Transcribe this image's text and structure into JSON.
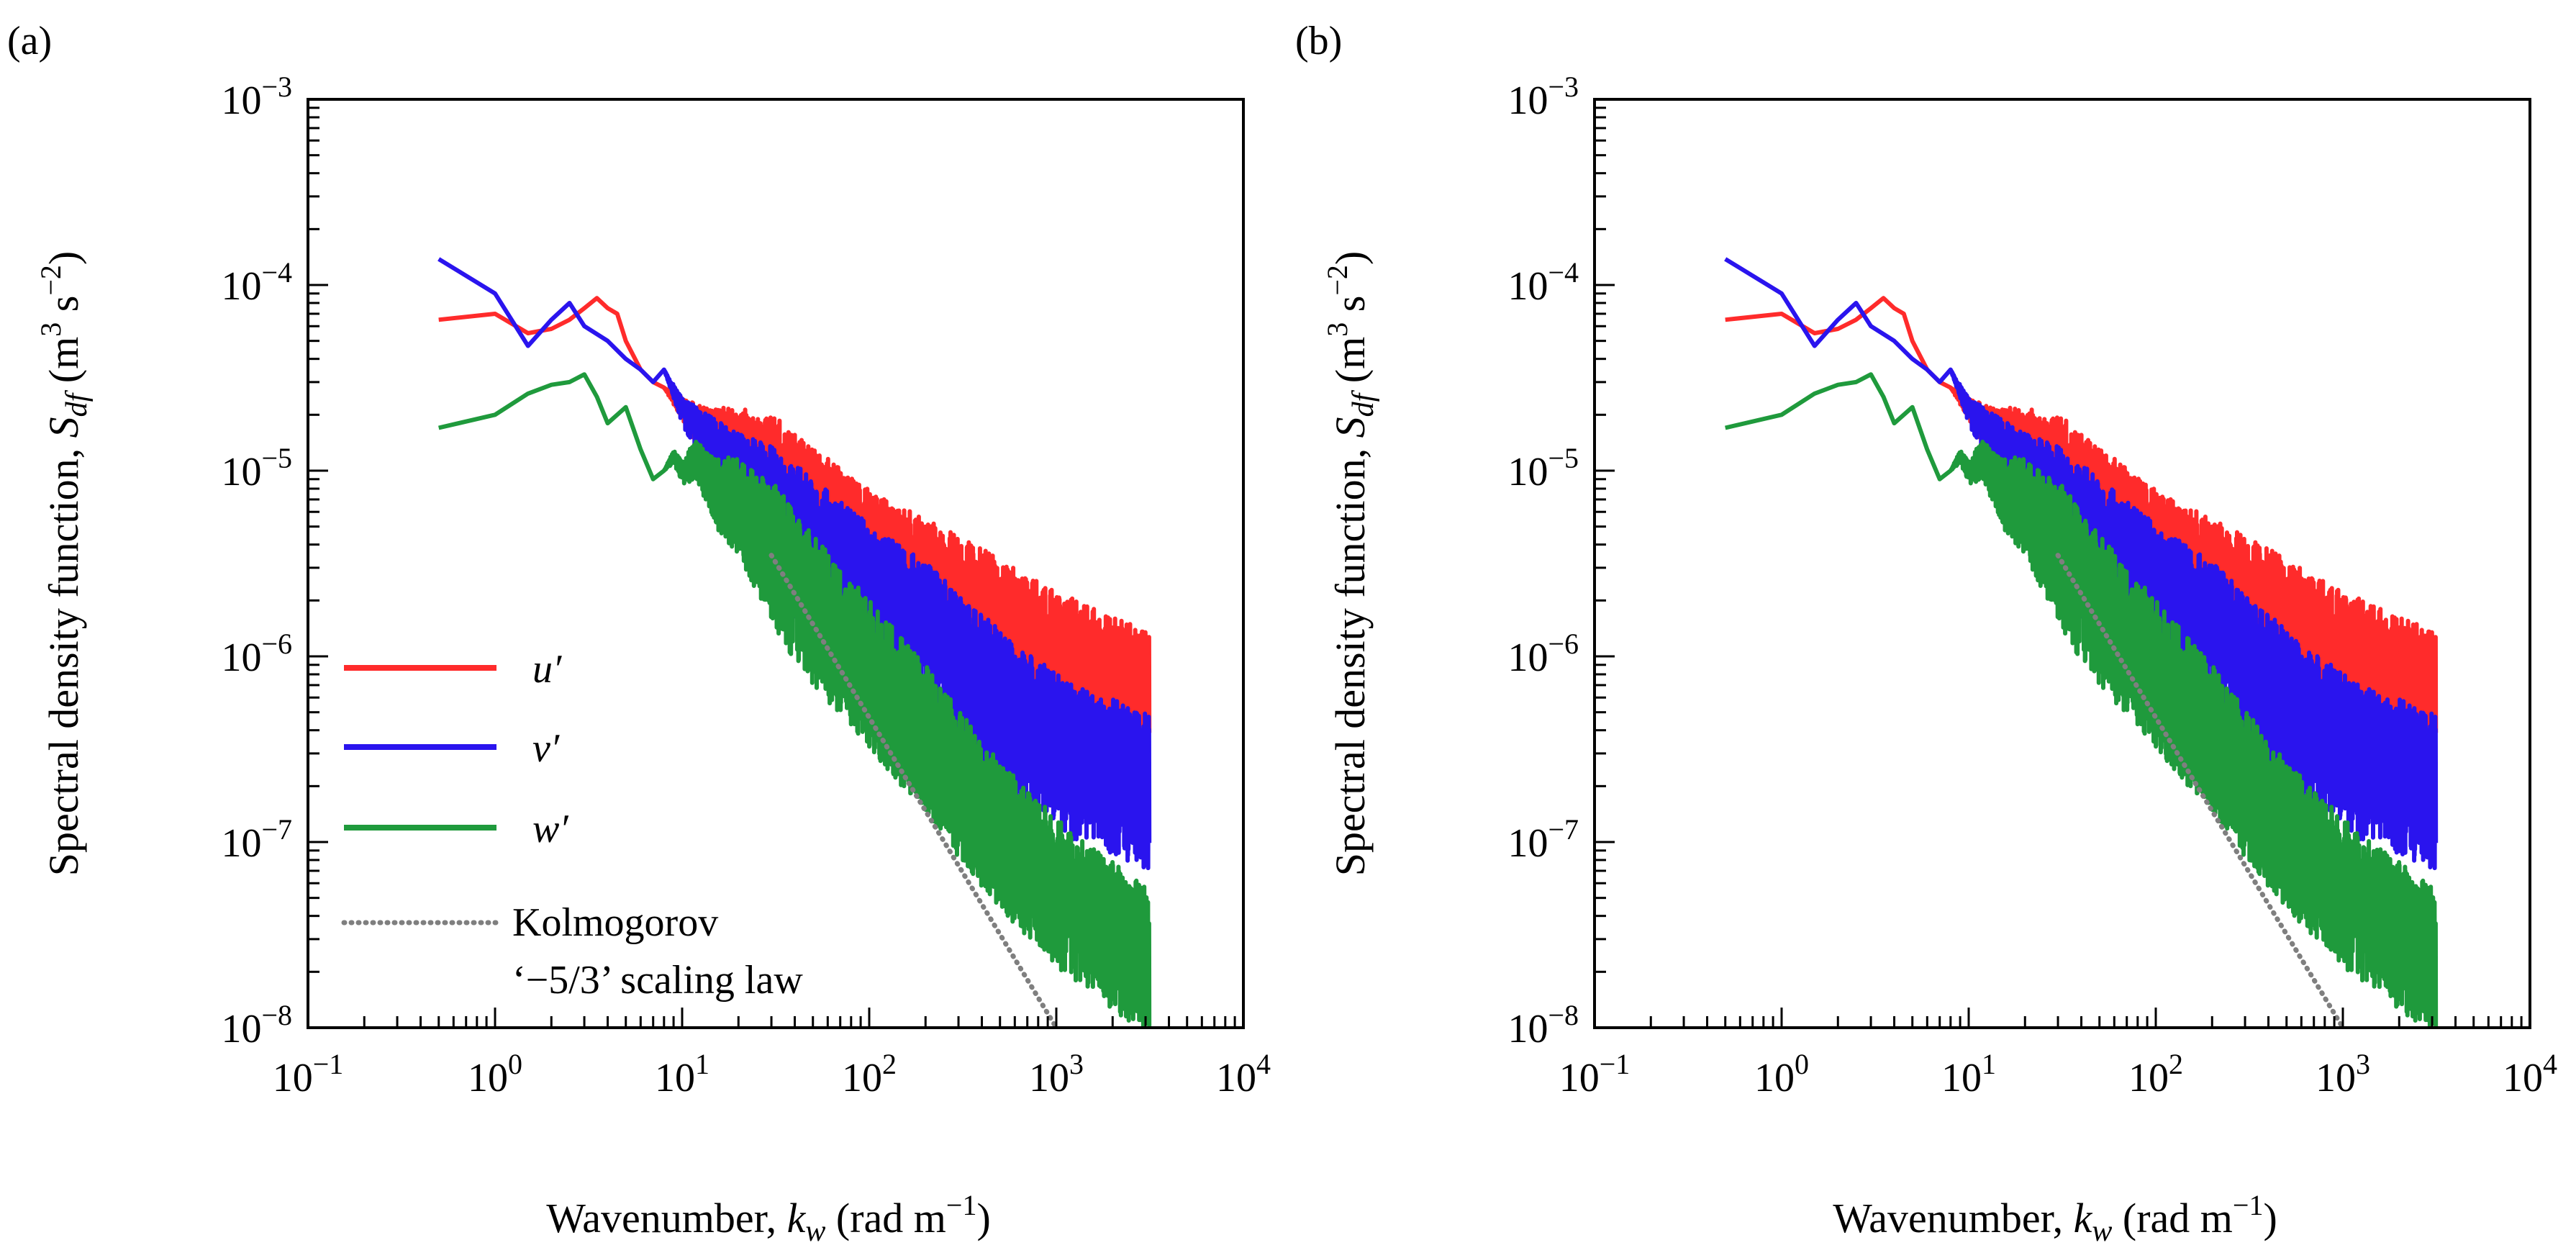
{
  "panels": [
    {
      "label": "(a)",
      "show_legend": true
    },
    {
      "label": "(b)",
      "show_legend": false
    }
  ],
  "axes": {
    "xlabel_prefix": "Wavenumber, ",
    "xlabel_var": "k",
    "xlabel_sub": "w",
    "xlabel_units_pre": " (rad m",
    "xlabel_units_sup": "−1",
    "xlabel_units_post": ")",
    "ylabel_prefix": "Spectral density function, ",
    "ylabel_var": "S",
    "ylabel_sub": "df",
    "ylabel_units_a": " (m",
    "ylabel_units_sup1": "3",
    "ylabel_units_b": " s",
    "ylabel_units_sup2": "−2",
    "ylabel_units_c": ")",
    "x_ticks": [
      {
        "base": "10",
        "exp": "−1"
      },
      {
        "base": "10",
        "exp": "0"
      },
      {
        "base": "10",
        "exp": "1"
      },
      {
        "base": "10",
        "exp": "2"
      },
      {
        "base": "10",
        "exp": "3"
      },
      {
        "base": "10",
        "exp": "4"
      }
    ],
    "y_ticks": [
      {
        "base": "10",
        "exp": "−8"
      },
      {
        "base": "10",
        "exp": "−7"
      },
      {
        "base": "10",
        "exp": "−6"
      },
      {
        "base": "10",
        "exp": "−5"
      },
      {
        "base": "10",
        "exp": "−4"
      },
      {
        "base": "10",
        "exp": "−3"
      }
    ]
  },
  "legend": {
    "u_label": "u′",
    "v_label": "v′",
    "w_label": "w′",
    "k_label_line1": "Kolmogorov",
    "k_label_line2": "‘−5/3’ scaling law"
  },
  "colors": {
    "u": "#ff2b2b",
    "v": "#2a14ee",
    "w": "#1f9a3c",
    "kolmogorov": "#7f7f7f"
  },
  "chart_data": {
    "type": "line",
    "xscale": "log",
    "yscale": "log",
    "xlim": [
      0.1,
      10000
    ],
    "ylim": [
      1e-08,
      0.001
    ],
    "title": "",
    "xlabel": "Wavenumber, k_w (rad m−1)",
    "ylabel": "Spectral density function, S_df (m3 s−2)",
    "legend_position": "lower-left",
    "kolmogorov_line": {
      "x": [
        30,
        1000
      ],
      "y": [
        3.5e-06,
        1e-08
      ],
      "slope": "-5/3"
    },
    "series": [
      {
        "name": "u′",
        "key": "u",
        "x": [
          0.5,
          1.0,
          1.5,
          2.0,
          2.5,
          3.0,
          3.5,
          4.0,
          4.5,
          5.0,
          6.0,
          7.0,
          8.0,
          10.0,
          12.0,
          15.0,
          20.0,
          30.0,
          50.0,
          100.0,
          200.0,
          500.0,
          1000.0,
          3140.0
        ],
        "y": [
          6.5e-05,
          7e-05,
          5.5e-05,
          5.8e-05,
          6.5e-05,
          7.5e-05,
          8.5e-05,
          7.5e-05,
          7e-05,
          5e-05,
          3.5e-05,
          3e-05,
          2.8e-05,
          2.2e-05,
          1.8e-05,
          1.5e-05,
          1.3e-05,
          9e-06,
          6e-06,
          3.5e-06,
          2.5e-06,
          1.5e-06,
          1e-06,
          6e-07
        ],
        "noise_start": 8,
        "noise_max_decades": 0.35,
        "noise_min_decades": 0.4
      },
      {
        "name": "v′",
        "key": "v",
        "x": [
          0.5,
          1.0,
          1.5,
          2.0,
          2.5,
          3.0,
          4.0,
          5.0,
          6.0,
          7.0,
          8.0,
          10.0,
          15.0,
          20.0,
          30.0,
          50.0,
          100.0,
          200.0,
          500.0,
          1000.0,
          3140.0
        ],
        "y": [
          0.000138,
          9e-05,
          4.7e-05,
          6.5e-05,
          8e-05,
          6e-05,
          5e-05,
          4e-05,
          3.5e-05,
          3e-05,
          3.5e-05,
          2.2e-05,
          1.4e-05,
          1e-05,
          7e-06,
          4.5e-06,
          2.6e-06,
          1.6e-06,
          7e-07,
          4e-07,
          2.5e-07
        ],
        "noise_start": 8,
        "noise_max_decades": 0.3,
        "noise_min_decades": 0.55
      },
      {
        "name": "w′",
        "key": "w",
        "x": [
          0.5,
          1.0,
          1.5,
          2.0,
          2.5,
          3.0,
          3.5,
          4.0,
          5.0,
          6.0,
          7.0,
          8.0,
          9.0,
          10.0,
          12.0,
          15.0,
          20.0,
          30.0,
          50.0,
          100.0,
          200.0,
          500.0,
          1000.0,
          3140.0
        ],
        "y": [
          1.7e-05,
          2e-05,
          2.6e-05,
          2.9e-05,
          3e-05,
          3.3e-05,
          2.5e-05,
          1.8e-05,
          2.2e-05,
          1.3e-05,
          9e-06,
          1e-05,
          1.2e-05,
          1e-05,
          1.2e-05,
          8e-06,
          7e-06,
          4e-06,
          2e-06,
          9e-07,
          4e-07,
          1.2e-07,
          6e-08,
          2.5e-08
        ],
        "noise_start": 8,
        "noise_max_decades": 0.35,
        "noise_min_decades": 0.45
      }
    ]
  }
}
